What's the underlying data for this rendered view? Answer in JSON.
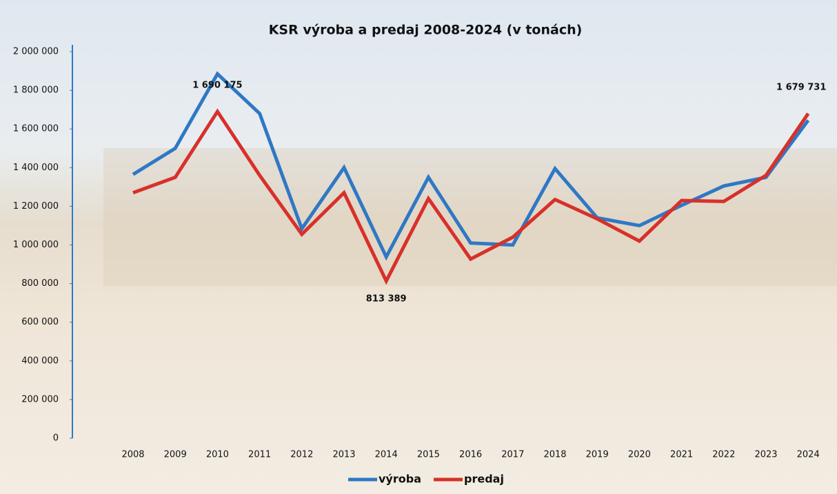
{
  "chart_data": {
    "type": "line",
    "title": "KSR výroba a predaj 2008-2024 (v tonách)",
    "categories": [
      "2008",
      "2009",
      "2010",
      "2011",
      "2012",
      "2013",
      "2014",
      "2015",
      "2016",
      "2017",
      "2018",
      "2019",
      "2020",
      "2021",
      "2022",
      "2023",
      "2024"
    ],
    "series": [
      {
        "name": "výroba",
        "color": "#2f78c4",
        "values": [
          1365000,
          1500000,
          1885000,
          1680000,
          1084000,
          1400000,
          938000,
          1350000,
          1010000,
          1000000,
          1395000,
          1140000,
          1100000,
          1205000,
          1305000,
          1350000,
          1645000
        ]
      },
      {
        "name": "predaj",
        "color": "#d8302a",
        "values": [
          1270000,
          1350000,
          1690175,
          1360000,
          1055000,
          1270000,
          813389,
          1240000,
          927000,
          1040000,
          1235000,
          1135000,
          1020000,
          1230000,
          1225000,
          1360000,
          1679731
        ],
        "value_labels": [
          null,
          null,
          "1 690 175",
          null,
          null,
          null,
          "813 389",
          null,
          null,
          null,
          null,
          null,
          null,
          null,
          null,
          null,
          "1 679 731"
        ]
      }
    ],
    "ylim": [
      0,
      2000000
    ],
    "yticks": [
      0,
      {
        "value": 200000,
        "label": "200 000"
      },
      {
        "value": 400000,
        "label": "400 000"
      },
      {
        "value": 600000,
        "label": "600 000"
      },
      {
        "value": 800000,
        "label": "800 000"
      },
      {
        "value": 1000000,
        "label": "1 000 000"
      },
      {
        "value": 1200000,
        "label": "1 200 000"
      },
      {
        "value": 1400000,
        "label": "1 400 000"
      },
      {
        "value": 1600000,
        "label": "1 600 000"
      },
      {
        "value": 1800000,
        "label": "1 800 000"
      },
      {
        "value": 2000000,
        "label": "2 000 000"
      }
    ],
    "legend": "bottom"
  }
}
